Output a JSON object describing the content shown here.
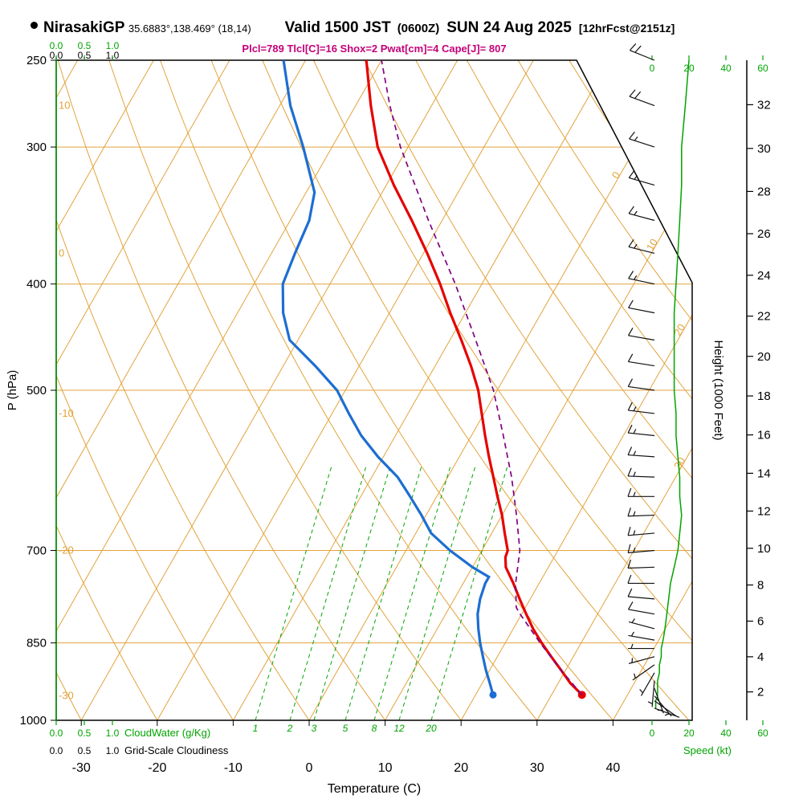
{
  "header": {
    "station": "NirasakiGP",
    "coords": "35.6883°,138.469° (18,14)",
    "valid": "Valid 1500 JST",
    "valid_zulu": "(0600Z)",
    "valid_date": "SUN 24 Aug 2025",
    "forecast": "[12hrFcst@2151z]",
    "params_line": "Plcl=789 Tlcl[C]=16 Shox=2 Pwat[cm]=4 Cape[J]= 807"
  },
  "axes": {
    "pressure": {
      "label": "P (hPa)",
      "ticks": [
        250,
        300,
        400,
        500,
        700,
        850,
        1000
      ]
    },
    "temperature": {
      "label": "Temperature (C)",
      "ticks": [
        -30,
        -20,
        -10,
        0,
        10,
        20,
        30,
        40
      ]
    },
    "height": {
      "label": "Height (1000 Feet)",
      "ticks": [
        2,
        4,
        6,
        8,
        10,
        12,
        14,
        16,
        18,
        20,
        22,
        24,
        26,
        28,
        30,
        32
      ]
    },
    "speed": {
      "label": "Speed (kt)",
      "ticks": [
        0,
        20,
        40,
        60
      ]
    },
    "cloudwater": {
      "label": "CloudWater (g/Kg)",
      "ticks": [
        "0.0",
        "0.5",
        "1.0"
      ]
    },
    "cloudiness": {
      "label": "Grid-Scale Cloudiness",
      "ticks": [
        "0.0",
        "0.5",
        "1.0"
      ]
    },
    "adiabat_labels": [
      10,
      0,
      -10,
      -20,
      -30
    ],
    "isotherm_labels": [
      0,
      10,
      20,
      30
    ],
    "mixing_ratio_labels": [
      1,
      2,
      3,
      5,
      8,
      12,
      20
    ]
  },
  "chart_data": {
    "type": "line",
    "variant": "skew-t log-p sounding",
    "pressure_range_hPa": [
      1000,
      250
    ],
    "temperature_range_C": [
      -30,
      40
    ],
    "pressure_gridlines": [
      300,
      400,
      500,
      700,
      850
    ],
    "indices": {
      "Plcl": 789,
      "Tlcl_C": 16,
      "Shox": 2,
      "Pwat_cm": 4,
      "Cape_J": 807
    },
    "surface": {
      "pressure_hPa": 948,
      "temperature_C": 34,
      "dewpoint_C": 22.3
    },
    "series": [
      {
        "name": "temperature",
        "color": "#e60000",
        "width": 3.2,
        "style": "solid",
        "surface_dot": true,
        "points": [
          [
            948,
            34
          ],
          [
            925,
            31.6
          ],
          [
            900,
            29.4
          ],
          [
            875,
            27.1
          ],
          [
            850,
            24.8
          ],
          [
            825,
            22.6
          ],
          [
            800,
            20.6
          ],
          [
            775,
            18.6
          ],
          [
            750,
            16.6
          ],
          [
            725,
            14.4
          ],
          [
            710,
            13.6
          ],
          [
            700,
            13.4
          ],
          [
            675,
            11.7
          ],
          [
            650,
            10.0
          ],
          [
            625,
            8.0
          ],
          [
            600,
            6.0
          ],
          [
            575,
            3.9
          ],
          [
            550,
            1.8
          ],
          [
            525,
            -0.3
          ],
          [
            500,
            -2.5
          ],
          [
            475,
            -5.3
          ],
          [
            450,
            -8.5
          ],
          [
            425,
            -12.0
          ],
          [
            400,
            -15.5
          ],
          [
            375,
            -19.5
          ],
          [
            350,
            -24.0
          ],
          [
            325,
            -29.0
          ],
          [
            300,
            -34.0
          ],
          [
            275,
            -38.0
          ],
          [
            250,
            -42.0
          ]
        ]
      },
      {
        "name": "dewpoint",
        "color": "#1d6ed2",
        "width": 3.2,
        "style": "solid",
        "surface_dot": true,
        "points": [
          [
            948,
            22.3
          ],
          [
            925,
            21.0
          ],
          [
            900,
            19.5
          ],
          [
            875,
            18.1
          ],
          [
            850,
            16.7
          ],
          [
            825,
            15.4
          ],
          [
            800,
            14.2
          ],
          [
            775,
            13.4
          ],
          [
            750,
            12.9
          ],
          [
            740,
            12.9
          ],
          [
            725,
            10.0
          ],
          [
            700,
            5.8
          ],
          [
            675,
            2.0
          ],
          [
            650,
            -0.6
          ],
          [
            625,
            -3.5
          ],
          [
            600,
            -6.6
          ],
          [
            575,
            -10.7
          ],
          [
            550,
            -14.5
          ],
          [
            525,
            -17.8
          ],
          [
            500,
            -21.1
          ],
          [
            475,
            -25.8
          ],
          [
            450,
            -31.1
          ],
          [
            425,
            -34.0
          ],
          [
            400,
            -36.2
          ],
          [
            375,
            -36.9
          ],
          [
            350,
            -37.5
          ],
          [
            330,
            -38.9
          ],
          [
            300,
            -43.8
          ],
          [
            275,
            -48.6
          ],
          [
            250,
            -52.9
          ]
        ]
      },
      {
        "name": "parcel",
        "color": "#800080",
        "width": 1.7,
        "style": "dashed",
        "surface_dot": false,
        "points": [
          [
            948,
            34
          ],
          [
            900,
            29.4
          ],
          [
            850,
            24.6
          ],
          [
            800,
            19.8
          ],
          [
            789,
            18.8
          ],
          [
            750,
            16.9
          ],
          [
            700,
            15.0
          ],
          [
            650,
            11.9
          ],
          [
            600,
            8.4
          ],
          [
            550,
            4.2
          ],
          [
            500,
            -0.5
          ],
          [
            450,
            -6.6
          ],
          [
            400,
            -13.5
          ],
          [
            350,
            -21.8
          ],
          [
            300,
            -31.0
          ],
          [
            275,
            -35.5
          ],
          [
            250,
            -40.0
          ]
        ]
      }
    ],
    "wind_profile": [
      [
        975,
        110,
        2
      ],
      [
        960,
        125,
        2
      ],
      [
        950,
        140,
        3
      ],
      [
        935,
        160,
        3
      ],
      [
        920,
        185,
        3
      ],
      [
        905,
        210,
        4
      ],
      [
        890,
        235,
        4
      ],
      [
        875,
        255,
        5
      ],
      [
        860,
        270,
        5
      ],
      [
        845,
        280,
        6
      ],
      [
        825,
        285,
        7
      ],
      [
        800,
        280,
        8
      ],
      [
        775,
        275,
        9
      ],
      [
        750,
        270,
        10
      ],
      [
        725,
        268,
        12
      ],
      [
        700,
        265,
        14
      ],
      [
        675,
        265,
        15
      ],
      [
        650,
        268,
        16
      ],
      [
        625,
        270,
        15
      ],
      [
        600,
        272,
        15
      ],
      [
        575,
        274,
        14
      ],
      [
        550,
        276,
        13
      ],
      [
        525,
        277,
        13
      ],
      [
        500,
        278,
        12
      ],
      [
        475,
        279,
        12
      ],
      [
        450,
        280,
        12
      ],
      [
        425,
        281,
        12
      ],
      [
        400,
        282,
        13
      ],
      [
        375,
        284,
        14
      ],
      [
        350,
        285,
        15
      ],
      [
        325,
        286,
        16
      ],
      [
        300,
        288,
        16
      ],
      [
        275,
        290,
        18
      ],
      [
        250,
        292,
        20
      ]
    ]
  },
  "colors": {
    "lattice_orange": "#e2a33c",
    "green": "#00a400",
    "temperature_red": "#e60000",
    "dewpoint_blue": "#1d6ed2",
    "parcel_purple": "#800080",
    "params_magenta": "#c4007a",
    "axis_black": "#000000"
  }
}
